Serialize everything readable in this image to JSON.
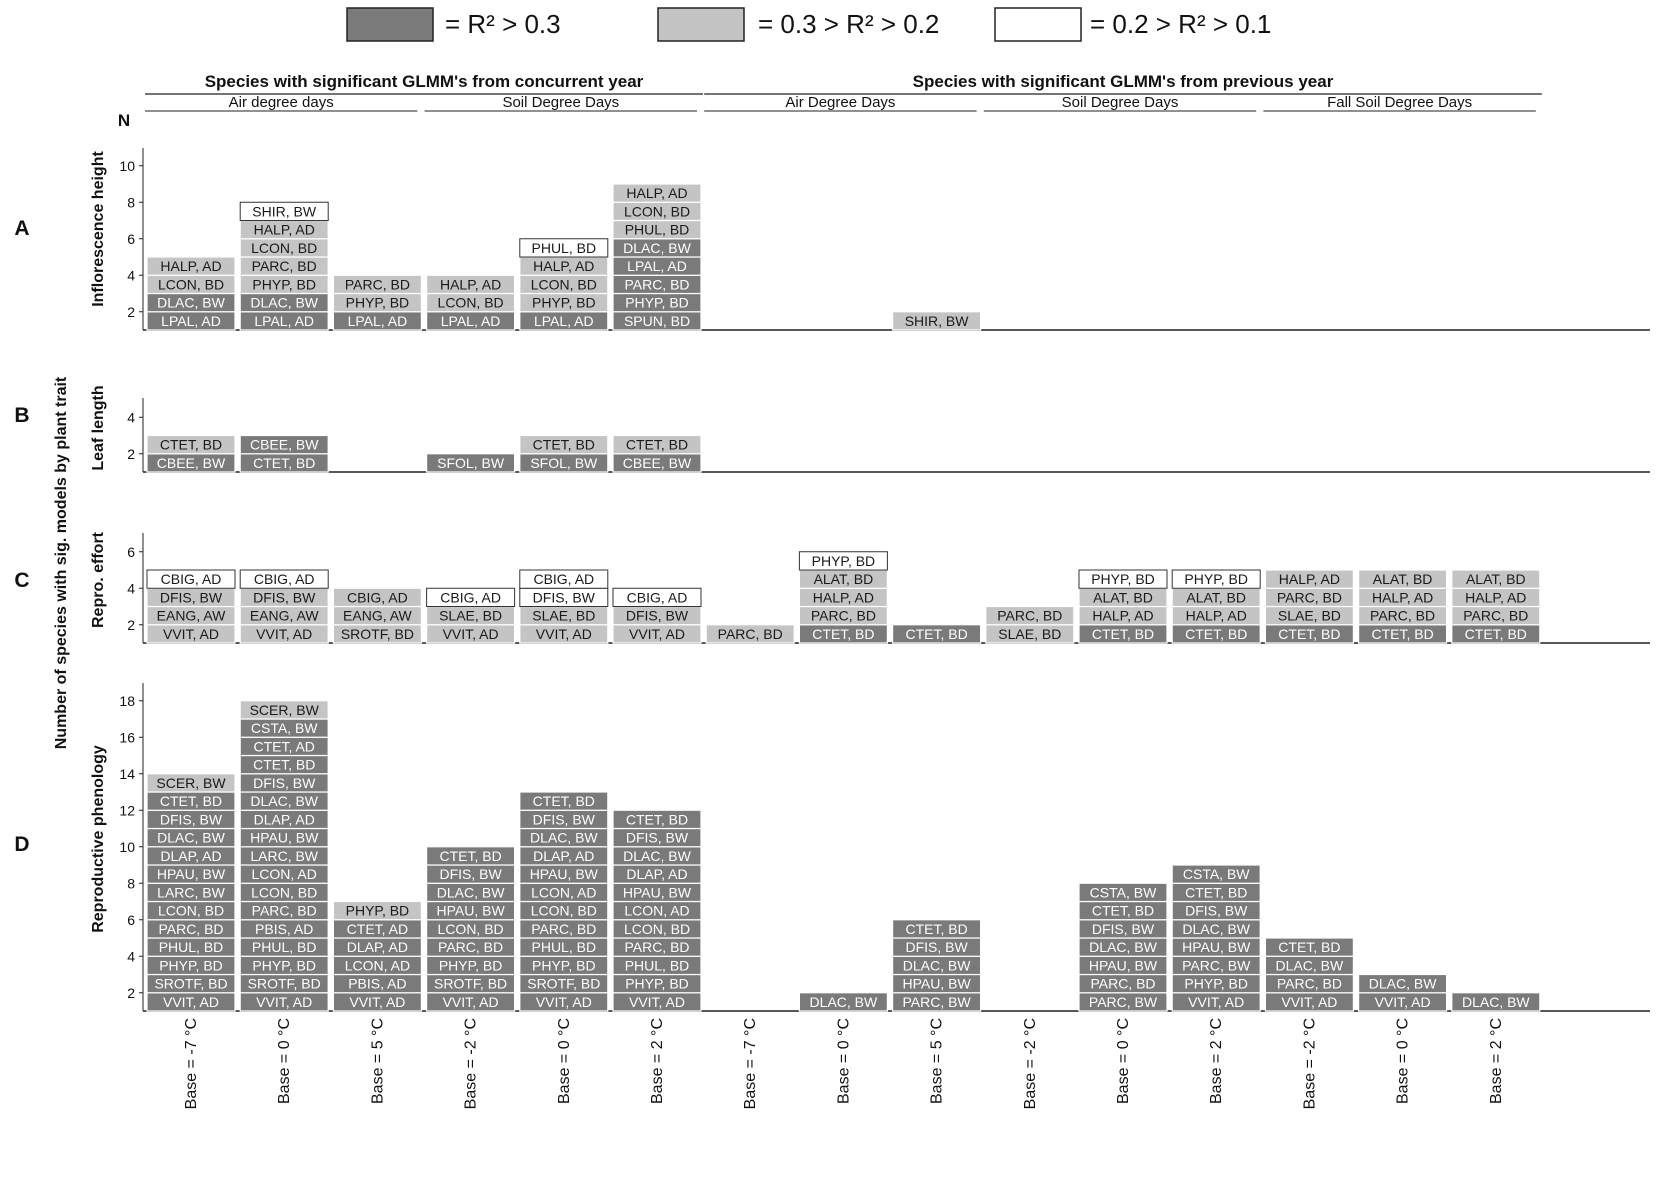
{
  "chart_data": {
    "type": "bar",
    "ylabel": "Number of species with sig. models by plant trait",
    "n_label": "N",
    "legend": {
      "placement": "top",
      "items": [
        {
          "level": "high",
          "label": "= R² > 0.3",
          "color": "#7a7a7a"
        },
        {
          "level": "mid",
          "label": "= 0.3 > R² > 0.2",
          "color": "#c4c4c4"
        },
        {
          "level": "low",
          "label": "= 0.2 > R² > 0.1",
          "color": "#ffffff"
        }
      ]
    },
    "groups": [
      {
        "title": "Species with significant GLMM's from concurrent year",
        "subgroups": [
          {
            "label": "Air degree days",
            "from": 0,
            "to": 2
          },
          {
            "label": "Soil Degree Days",
            "from": 3,
            "to": 5
          }
        ],
        "from": 0,
        "to": 5
      },
      {
        "title": "Species with significant GLMM's from previous year",
        "subgroups": [
          {
            "label": "Air Degree Days",
            "from": 6,
            "to": 8
          },
          {
            "label": "Soil Degree Days",
            "from": 9,
            "to": 11
          },
          {
            "label": "Fall Soil Degree Days",
            "from": 12,
            "to": 14
          }
        ],
        "from": 6,
        "to": 14
      }
    ],
    "categories": [
      "Base = -7 °C",
      "Base = 0 °C",
      "Base = 5 °C",
      "Base = -2 °C",
      "Base = 0 °C",
      "Base = 2 °C",
      "Base = -7 °C",
      "Base = 0 °C",
      "Base = 5 °C",
      "Base = -2 °C",
      "Base = 0 °C",
      "Base = 2 °C",
      "Base = -2 °C",
      "Base = 0 °C",
      "Base = 2 °C"
    ],
    "panels": [
      {
        "letter": "A",
        "ylabel": "Inflorescence height",
        "yticks": [
          2,
          4,
          6,
          8,
          10
        ],
        "ymax": 10,
        "columns": [
          [
            [
              "LPAL, AD",
              "high"
            ],
            [
              "DLAC, BW",
              "high"
            ],
            [
              "LCON, BD",
              "mid"
            ],
            [
              "HALP, AD",
              "mid"
            ]
          ],
          [
            [
              "LPAL, AD",
              "high"
            ],
            [
              "DLAC, BW",
              "high"
            ],
            [
              "PHYP, BD",
              "mid"
            ],
            [
              "PARC, BD",
              "mid"
            ],
            [
              "LCON, BD",
              "mid"
            ],
            [
              "HALP, AD",
              "mid"
            ],
            [
              "SHIR, BW",
              "low"
            ]
          ],
          [
            [
              "LPAL, AD",
              "high"
            ],
            [
              "PHYP, BD",
              "mid"
            ],
            [
              "PARC, BD",
              "mid"
            ]
          ],
          [
            [
              "LPAL, AD",
              "high"
            ],
            [
              "LCON, BD",
              "mid"
            ],
            [
              "HALP, AD",
              "mid"
            ]
          ],
          [
            [
              "LPAL, AD",
              "high"
            ],
            [
              "PHYP, BD",
              "mid"
            ],
            [
              "LCON, BD",
              "mid"
            ],
            [
              "HALP, AD",
              "mid"
            ],
            [
              "PHUL, BD",
              "low"
            ]
          ],
          [
            [
              "SPUN, BD",
              "high"
            ],
            [
              "PHYP, BD",
              "high"
            ],
            [
              "PARC, BD",
              "high"
            ],
            [
              "LPAL, AD",
              "high"
            ],
            [
              "DLAC, BW",
              "high"
            ],
            [
              "PHUL, BD",
              "mid"
            ],
            [
              "LCON, BD",
              "mid"
            ],
            [
              "HALP, AD",
              "mid"
            ]
          ],
          [],
          [],
          [
            [
              "SHIR, BW",
              "mid"
            ]
          ],
          [],
          [],
          [],
          [],
          [],
          []
        ]
      },
      {
        "letter": "B",
        "ylabel": "Leaf length",
        "yticks": [
          2,
          4
        ],
        "ymax": 4,
        "columns": [
          [
            [
              "CBEE, BW",
              "high"
            ],
            [
              "CTET, BD",
              "mid"
            ]
          ],
          [
            [
              "CTET, BD",
              "high"
            ],
            [
              "CBEE, BW",
              "high"
            ]
          ],
          [],
          [
            [
              "SFOL, BW",
              "high"
            ]
          ],
          [
            [
              "SFOL, BW",
              "high"
            ],
            [
              "CTET, BD",
              "mid"
            ]
          ],
          [
            [
              "CBEE, BW",
              "high"
            ],
            [
              "CTET, BD",
              "mid"
            ]
          ],
          [],
          [],
          [],
          [],
          [],
          [],
          [],
          [],
          []
        ]
      },
      {
        "letter": "C",
        "ylabel": "Repro. effort",
        "yticks": [
          2,
          4,
          6
        ],
        "ymax": 6,
        "columns": [
          [
            [
              "VVIT, AD",
              "mid"
            ],
            [
              "EANG, AW",
              "mid"
            ],
            [
              "DFIS, BW",
              "mid"
            ],
            [
              "CBIG, AD",
              "low"
            ]
          ],
          [
            [
              "VVIT, AD",
              "mid"
            ],
            [
              "EANG, AW",
              "mid"
            ],
            [
              "DFIS, BW",
              "mid"
            ],
            [
              "CBIG, AD",
              "low"
            ]
          ],
          [
            [
              "SROTF, BD",
              "mid"
            ],
            [
              "EANG, AW",
              "mid"
            ],
            [
              "CBIG, AD",
              "mid"
            ]
          ],
          [
            [
              "VVIT, AD",
              "mid"
            ],
            [
              "SLAE, BD",
              "mid"
            ],
            [
              "CBIG, AD",
              "low"
            ]
          ],
          [
            [
              "VVIT, AD",
              "mid"
            ],
            [
              "SLAE, BD",
              "mid"
            ],
            [
              "DFIS, BW",
              "low"
            ],
            [
              "CBIG, AD",
              "low"
            ]
          ],
          [
            [
              "VVIT, AD",
              "mid"
            ],
            [
              "DFIS, BW",
              "mid"
            ],
            [
              "CBIG, AD",
              "low"
            ]
          ],
          [
            [
              "PARC, BD",
              "mid"
            ]
          ],
          [
            [
              "CTET, BD",
              "high"
            ],
            [
              "PARC, BD",
              "mid"
            ],
            [
              "HALP, AD",
              "mid"
            ],
            [
              "ALAT, BD",
              "mid"
            ],
            [
              "PHYP, BD",
              "low"
            ]
          ],
          [
            [
              "CTET, BD",
              "high"
            ]
          ],
          [
            [
              "SLAE, BD",
              "mid"
            ],
            [
              "PARC, BD",
              "mid"
            ]
          ],
          [
            [
              "CTET, BD",
              "high"
            ],
            [
              "HALP, AD",
              "mid"
            ],
            [
              "ALAT, BD",
              "mid"
            ],
            [
              "PHYP, BD",
              "low"
            ]
          ],
          [
            [
              "CTET, BD",
              "high"
            ],
            [
              "HALP, AD",
              "mid"
            ],
            [
              "ALAT, BD",
              "mid"
            ],
            [
              "PHYP, BD",
              "low"
            ]
          ],
          [
            [
              "CTET, BD",
              "high"
            ],
            [
              "SLAE, BD",
              "mid"
            ],
            [
              "PARC, BD",
              "mid"
            ],
            [
              "HALP, AD",
              "mid"
            ]
          ],
          [
            [
              "CTET, BD",
              "high"
            ],
            [
              "PARC, BD",
              "mid"
            ],
            [
              "HALP, AD",
              "mid"
            ],
            [
              "ALAT, BD",
              "mid"
            ]
          ],
          [
            [
              "CTET, BD",
              "high"
            ],
            [
              "PARC, BD",
              "mid"
            ],
            [
              "HALP, AD",
              "mid"
            ],
            [
              "ALAT, BD",
              "mid"
            ]
          ]
        ]
      },
      {
        "letter": "D",
        "ylabel": "Reproductive phenology",
        "yticks": [
          2,
          4,
          6,
          8,
          10,
          12,
          14,
          16,
          18
        ],
        "ymax": 18,
        "columns": [
          [
            [
              "VVIT, AD",
              "high"
            ],
            [
              "SROTF, BD",
              "high"
            ],
            [
              "PHYP, BD",
              "high"
            ],
            [
              "PHUL, BD",
              "high"
            ],
            [
              "PARC, BD",
              "high"
            ],
            [
              "LCON, BD",
              "high"
            ],
            [
              "LARC, BW",
              "high"
            ],
            [
              "HPAU, BW",
              "high"
            ],
            [
              "DLAP, AD",
              "high"
            ],
            [
              "DLAC, BW",
              "high"
            ],
            [
              "DFIS, BW",
              "high"
            ],
            [
              "CTET, BD",
              "high"
            ],
            [
              "SCER, BW",
              "mid"
            ]
          ],
          [
            [
              "VVIT, AD",
              "high"
            ],
            [
              "SROTF, BD",
              "high"
            ],
            [
              "PHYP, BD",
              "high"
            ],
            [
              "PHUL, BD",
              "high"
            ],
            [
              "PBIS, AD",
              "high"
            ],
            [
              "PARC, BD",
              "high"
            ],
            [
              "LCON, BD",
              "high"
            ],
            [
              "LCON, AD",
              "high"
            ],
            [
              "LARC, BW",
              "high"
            ],
            [
              "HPAU, BW",
              "high"
            ],
            [
              "DLAP, AD",
              "high"
            ],
            [
              "DLAC, BW",
              "high"
            ],
            [
              "DFIS, BW",
              "high"
            ],
            [
              "CTET, BD",
              "high"
            ],
            [
              "CTET, AD",
              "high"
            ],
            [
              "CSTA, BW",
              "high"
            ],
            [
              "SCER, BW",
              "mid"
            ]
          ],
          [
            [
              "VVIT, AD",
              "high"
            ],
            [
              "PBIS, AD",
              "high"
            ],
            [
              "LCON, AD",
              "high"
            ],
            [
              "DLAP, AD",
              "high"
            ],
            [
              "CTET, AD",
              "high"
            ],
            [
              "PHYP, BD",
              "mid"
            ]
          ],
          [
            [
              "VVIT, AD",
              "high"
            ],
            [
              "SROTF, BD",
              "high"
            ],
            [
              "PHYP, BD",
              "high"
            ],
            [
              "PARC, BD",
              "high"
            ],
            [
              "LCON, BD",
              "high"
            ],
            [
              "HPAU, BW",
              "high"
            ],
            [
              "DLAC, BW",
              "high"
            ],
            [
              "DFIS, BW",
              "high"
            ],
            [
              "CTET, BD",
              "high"
            ]
          ],
          [
            [
              "VVIT, AD",
              "high"
            ],
            [
              "SROTF, BD",
              "high"
            ],
            [
              "PHYP, BD",
              "high"
            ],
            [
              "PHUL, BD",
              "high"
            ],
            [
              "PARC, BD",
              "high"
            ],
            [
              "LCON, BD",
              "high"
            ],
            [
              "LCON, AD",
              "high"
            ],
            [
              "HPAU, BW",
              "high"
            ],
            [
              "DLAP, AD",
              "high"
            ],
            [
              "DLAC, BW",
              "high"
            ],
            [
              "DFIS, BW",
              "high"
            ],
            [
              "CTET, BD",
              "high"
            ]
          ],
          [
            [
              "VVIT, AD",
              "high"
            ],
            [
              "PHYP, BD",
              "high"
            ],
            [
              "PHUL, BD",
              "high"
            ],
            [
              "PARC, BD",
              "high"
            ],
            [
              "LCON, BD",
              "high"
            ],
            [
              "LCON, AD",
              "high"
            ],
            [
              "HPAU, BW",
              "high"
            ],
            [
              "DLAP, AD",
              "high"
            ],
            [
              "DLAC, BW",
              "high"
            ],
            [
              "DFIS, BW",
              "high"
            ],
            [
              "CTET, BD",
              "high"
            ]
          ],
          [],
          [
            [
              "DLAC, BW",
              "high"
            ]
          ],
          [
            [
              "PARC, BW",
              "high"
            ],
            [
              "HPAU, BW",
              "high"
            ],
            [
              "DLAC, BW",
              "high"
            ],
            [
              "DFIS, BW",
              "high"
            ],
            [
              "CTET, BD",
              "high"
            ]
          ],
          [],
          [
            [
              "PARC, BW",
              "high"
            ],
            [
              "PARC, BD",
              "high"
            ],
            [
              "HPAU, BW",
              "high"
            ],
            [
              "DLAC, BW",
              "high"
            ],
            [
              "DFIS, BW",
              "high"
            ],
            [
              "CTET, BD",
              "high"
            ],
            [
              "CSTA, BW",
              "high"
            ]
          ],
          [
            [
              "VVIT, AD",
              "high"
            ],
            [
              "PHYP, BD",
              "high"
            ],
            [
              "PARC, BW",
              "high"
            ],
            [
              "HPAU, BW",
              "high"
            ],
            [
              "DLAC, BW",
              "high"
            ],
            [
              "DFIS, BW",
              "high"
            ],
            [
              "CTET, BD",
              "high"
            ],
            [
              "CSTA, BW",
              "high"
            ]
          ],
          [
            [
              "VVIT, AD",
              "high"
            ],
            [
              "PARC, BD",
              "high"
            ],
            [
              "DLAC, BW",
              "high"
            ],
            [
              "CTET, BD",
              "high"
            ]
          ],
          [
            [
              "VVIT, AD",
              "high"
            ],
            [
              "DLAC, BW",
              "high"
            ]
          ],
          [
            [
              "DLAC, BW",
              "high"
            ]
          ]
        ]
      }
    ]
  }
}
